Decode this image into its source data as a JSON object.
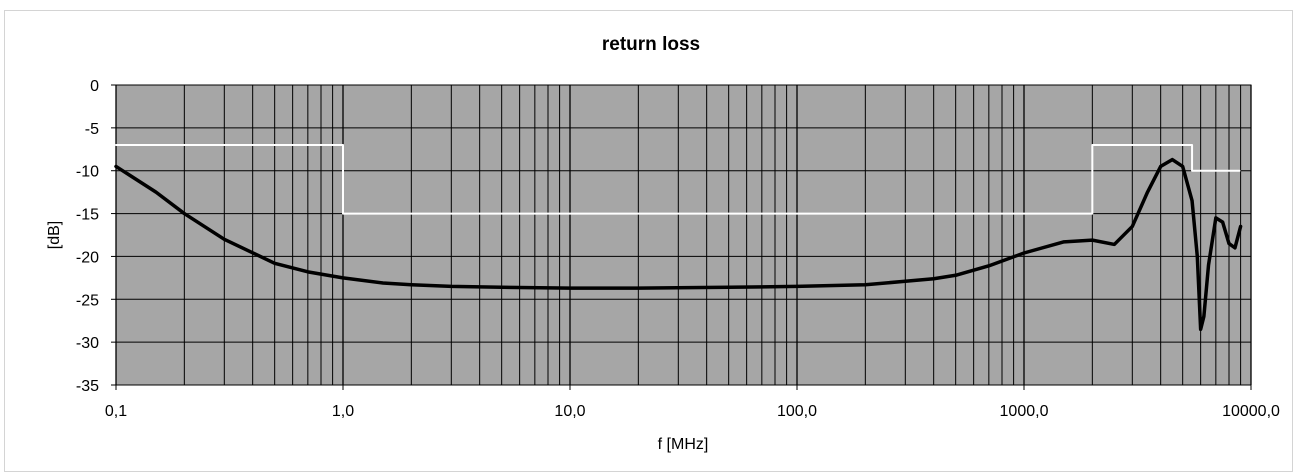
{
  "chart_data": {
    "type": "line",
    "title": "return loss",
    "xlabel": "f [MHz]",
    "ylabel": "[dB]",
    "x_scale": "log",
    "xlim": [
      0.1,
      10000
    ],
    "ylim": [
      -35,
      0
    ],
    "grid": true,
    "legend": "none",
    "x_tick_labels": [
      "0,1",
      "1,0",
      "10,0",
      "100,0",
      "1000,0",
      "10000,0"
    ],
    "y_tick_labels": [
      "0",
      "-5",
      "-10",
      "-15",
      "-20",
      "-25",
      "-30",
      "-35"
    ],
    "plot_background": "#a6a6a6",
    "series": [
      {
        "role": "limit",
        "color": "#ffffff",
        "x": [
          0.1,
          1.0,
          1.0,
          2000,
          2000,
          5500,
          5500,
          8900
        ],
        "y": [
          -7,
          -7,
          -15,
          -15,
          -7,
          -7,
          -10,
          -10
        ]
      },
      {
        "role": "measurement",
        "color": "#000000",
        "x": [
          0.1,
          0.15,
          0.2,
          0.3,
          0.5,
          0.7,
          1.0,
          1.5,
          2,
          3,
          5,
          10,
          20,
          50,
          100,
          200,
          300,
          400,
          500,
          700,
          1000,
          1500,
          2000,
          2500,
          3000,
          3500,
          4000,
          4500,
          5000,
          5500,
          5800,
          6000,
          6200,
          6500,
          7000,
          7500,
          8000,
          8500,
          9000
        ],
        "y": [
          -9.5,
          -12.5,
          -15,
          -18,
          -20.8,
          -21.8,
          -22.5,
          -23.1,
          -23.3,
          -23.5,
          -23.6,
          -23.7,
          -23.7,
          -23.6,
          -23.5,
          -23.3,
          -22.9,
          -22.6,
          -22.2,
          -21.1,
          -19.6,
          -18.3,
          -18.1,
          -18.6,
          -16.5,
          -12.5,
          -9.5,
          -8.7,
          -9.5,
          -13.5,
          -20,
          -28.5,
          -27,
          -21,
          -15.5,
          -16,
          -18.5,
          -19,
          -16.5
        ]
      }
    ]
  }
}
